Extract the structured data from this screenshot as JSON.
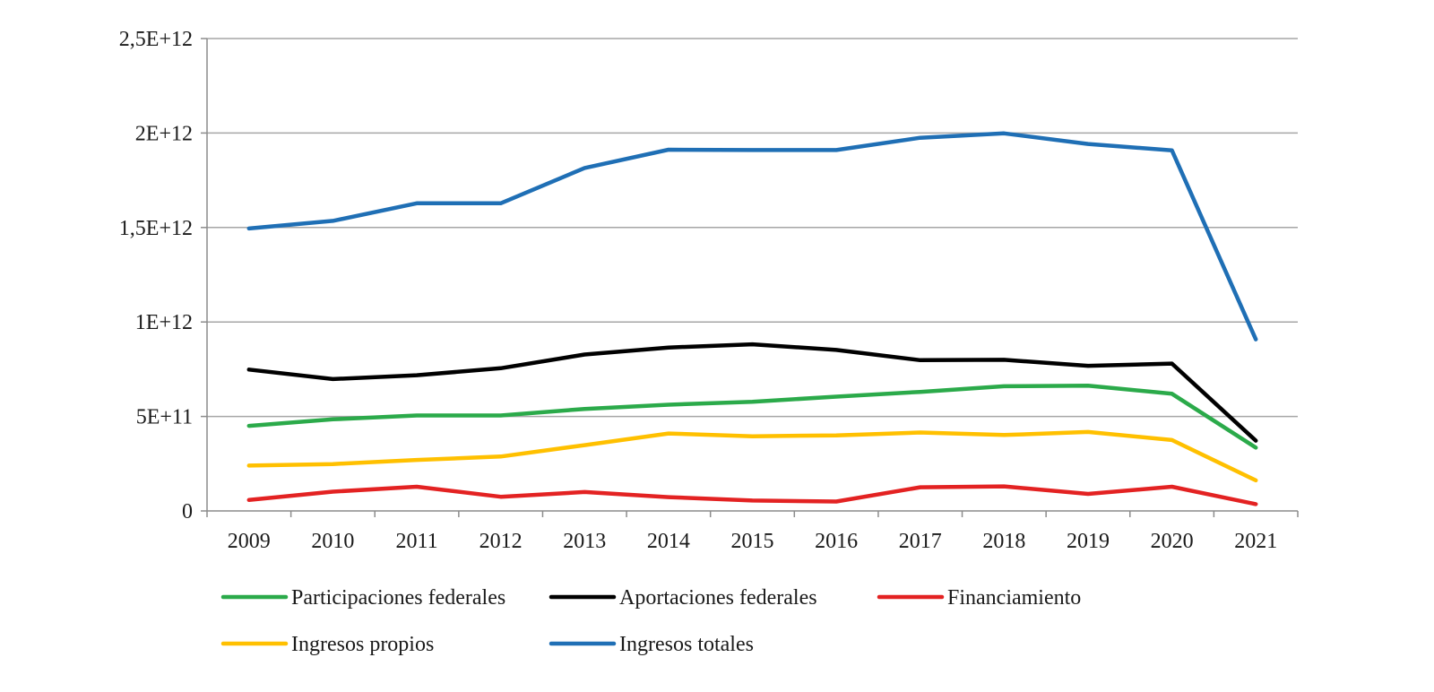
{
  "chart_data": {
    "type": "line",
    "title": "",
    "xlabel": "",
    "ylabel": "",
    "categories": [
      "2009",
      "2010",
      "2011",
      "2012",
      "2013",
      "2014",
      "2015",
      "2016",
      "2017",
      "2018",
      "2019",
      "2020",
      "2021"
    ],
    "ylim": [
      0,
      2500000000000
    ],
    "yticks": [
      0,
      500000000000,
      1000000000000,
      1500000000000,
      2000000000000,
      2500000000000
    ],
    "ytick_labels": [
      "0",
      "5E+11",
      "1E+12",
      "1,5E+12",
      "2E+12",
      "2,5E+12"
    ],
    "grid": "horizontal",
    "legend_position": "bottom",
    "series": [
      {
        "name": "Participaciones federales",
        "color": "#2BAA4A",
        "values": [
          450000000000,
          485000000000,
          505000000000,
          505000000000,
          540000000000,
          562000000000,
          578000000000,
          605000000000,
          630000000000,
          660000000000,
          663000000000,
          620000000000,
          335000000000
        ]
      },
      {
        "name": "Aportaciones federales",
        "color": "#000000",
        "values": [
          748000000000,
          698000000000,
          718000000000,
          755000000000,
          828000000000,
          865000000000,
          882000000000,
          852000000000,
          798000000000,
          800000000000,
          768000000000,
          780000000000,
          372000000000
        ]
      },
      {
        "name": "Financiamiento",
        "color": "#E32222",
        "values": [
          58000000000,
          102000000000,
          128000000000,
          75000000000,
          100000000000,
          73000000000,
          55000000000,
          50000000000,
          125000000000,
          130000000000,
          90000000000,
          128000000000,
          36000000000
        ]
      },
      {
        "name": "Ingresos propios",
        "color": "#FFC000",
        "values": [
          240000000000,
          248000000000,
          270000000000,
          288000000000,
          348000000000,
          410000000000,
          395000000000,
          400000000000,
          415000000000,
          402000000000,
          418000000000,
          375000000000,
          162000000000
        ]
      },
      {
        "name": "Ingresos totales",
        "color": "#1F6FB5",
        "values": [
          1495000000000,
          1535000000000,
          1628000000000,
          1628000000000,
          1815000000000,
          1912000000000,
          1910000000000,
          1910000000000,
          1975000000000,
          1998000000000,
          1942000000000,
          1908000000000,
          908000000000
        ]
      }
    ]
  }
}
